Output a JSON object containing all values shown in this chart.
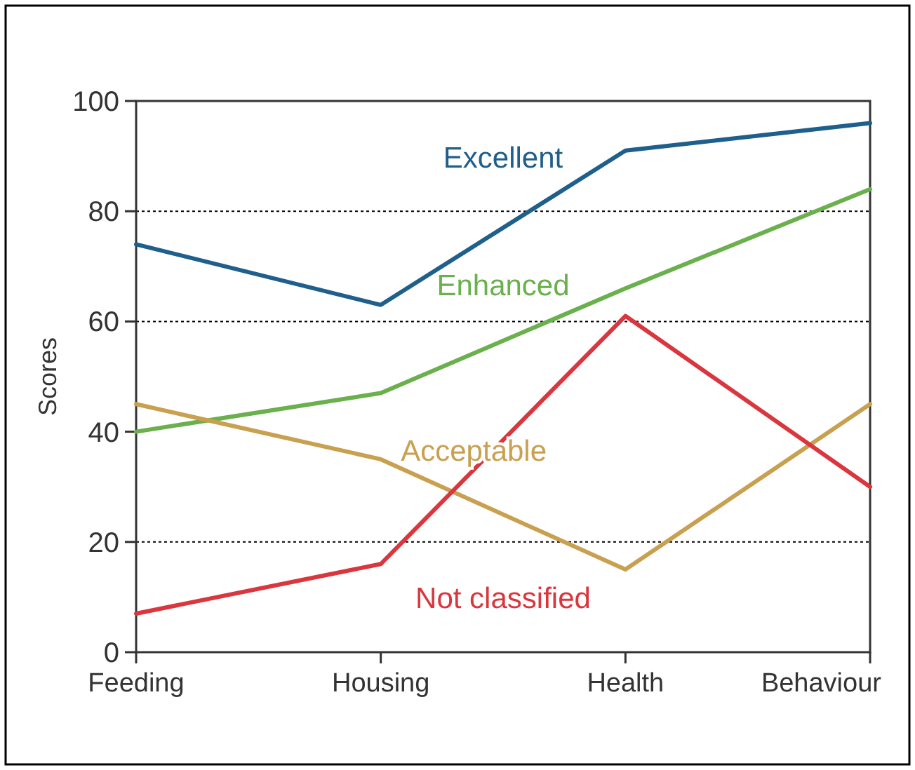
{
  "chart_data": {
    "type": "line",
    "ylabel": "Scores",
    "categories": [
      "Feeding",
      "Housing",
      "Health",
      "Behaviour"
    ],
    "series": [
      {
        "name": "Excellent",
        "color": "#1f5f8b",
        "values": [
          74,
          63,
          91,
          96
        ]
      },
      {
        "name": "Enhanced",
        "color": "#6ab04c",
        "values": [
          40,
          47,
          66,
          84
        ]
      },
      {
        "name": "Acceptable",
        "color": "#c8a050",
        "values": [
          45,
          35,
          15,
          45
        ]
      },
      {
        "name": "Not classified",
        "color": "#d9363e",
        "values": [
          7,
          16,
          61,
          30
        ]
      }
    ],
    "ylim": [
      0,
      100
    ],
    "yticks": [
      0,
      20,
      40,
      60,
      80,
      100
    ],
    "grid": false,
    "marker": "none",
    "line_style": "solid",
    "ref_lines": [
      {
        "axis": "y",
        "value": 20,
        "line_style": "dotted"
      },
      {
        "axis": "y",
        "value": 60,
        "line_style": "dotted"
      },
      {
        "axis": "y",
        "value": 80,
        "line_style": "dotted"
      }
    ]
  }
}
